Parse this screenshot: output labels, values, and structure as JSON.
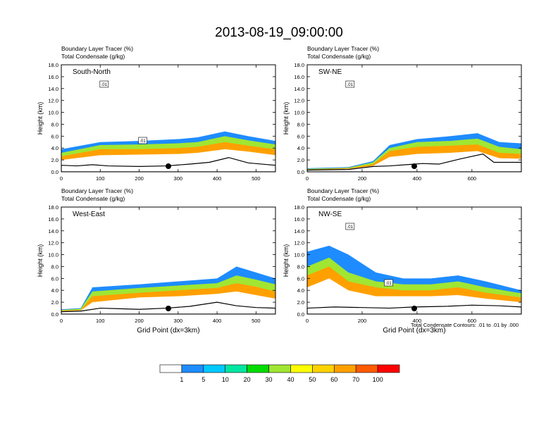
{
  "title": "2013-08-19_09:00:00",
  "footer_note": "Total Condensate Contours: .01 to .01 by .000",
  "chart_data": [
    {
      "type": "heatmap",
      "panel_label": "South-North",
      "subtitle_1": "Boundary Layer Tracer",
      "subtitle_1_units": "(%)",
      "subtitle_2": "Total Condensate",
      "subtitle_2_units": "(g/kg)",
      "ylabel": "Height (km)",
      "xlabel": "",
      "xlim": [
        0,
        550
      ],
      "ylim": [
        0,
        18
      ],
      "xticks": [
        "0",
        "100",
        "200",
        "300",
        "400",
        "500"
      ],
      "xtick_values": [
        0,
        100,
        200,
        300,
        400,
        500
      ],
      "yticks": [
        "0.0",
        "2.0",
        "4.0",
        "6.0",
        "8.0",
        "10.0",
        "12.0",
        "14.0",
        "16.0",
        "18.0"
      ],
      "ytick_values": [
        0,
        2,
        4,
        6,
        8,
        10,
        12,
        14,
        16,
        18
      ],
      "contour_labels": [
        ".01",
        ".01"
      ],
      "marker_x": 275,
      "terrain_km": [
        [
          0,
          1.1
        ],
        [
          40,
          1.0
        ],
        [
          80,
          1.2
        ],
        [
          120,
          1.0
        ],
        [
          200,
          0.9
        ],
        [
          270,
          1.0
        ],
        [
          330,
          1.3
        ],
        [
          380,
          1.6
        ],
        [
          430,
          2.4
        ],
        [
          480,
          1.5
        ],
        [
          550,
          1.1
        ]
      ],
      "tracer_layers": [
        {
          "level": 1,
          "top_km": [
            [
              0,
              3.8
            ],
            [
              100,
              5.0
            ],
            [
              200,
              5.2
            ],
            [
              300,
              5.5
            ],
            [
              350,
              5.8
            ],
            [
              420,
              6.8
            ],
            [
              480,
              6.0
            ],
            [
              550,
              5.2
            ]
          ]
        },
        {
          "level": 30,
          "top_km": [
            [
              0,
              3.2
            ],
            [
              100,
              4.5
            ],
            [
              200,
              4.6
            ],
            [
              300,
              4.8
            ],
            [
              350,
              5.0
            ],
            [
              420,
              6.0
            ],
            [
              480,
              5.3
            ],
            [
              550,
              4.6
            ]
          ]
        },
        {
          "level": 60,
          "top_km": [
            [
              0,
              2.6
            ],
            [
              100,
              3.8
            ],
            [
              200,
              3.8
            ],
            [
              300,
              4.0
            ],
            [
              350,
              4.2
            ],
            [
              420,
              5.0
            ],
            [
              480,
              4.4
            ],
            [
              550,
              3.8
            ]
          ]
        },
        {
          "level": 80,
          "top_km": [
            [
              0,
              2.0
            ],
            [
              100,
              2.8
            ],
            [
              200,
              2.9
            ],
            [
              300,
              3.0
            ],
            [
              350,
              3.2
            ],
            [
              420,
              3.8
            ],
            [
              480,
              3.4
            ],
            [
              550,
              2.8
            ]
          ]
        }
      ]
    },
    {
      "type": "heatmap",
      "panel_label": "SW-NE",
      "subtitle_1": "Boundary Layer Tracer",
      "subtitle_1_units": "(%)",
      "subtitle_2": "Total Condensate",
      "subtitle_2_units": "(g/kg)",
      "ylabel": "Height (km)",
      "xlabel": "",
      "xlim": [
        0,
        780
      ],
      "ylim": [
        0,
        18
      ],
      "xticks": [
        "0",
        "200",
        "400",
        "600"
      ],
      "xtick_values": [
        0,
        200,
        400,
        600
      ],
      "yticks": [
        "0.0",
        "2.0",
        "4.0",
        "6.0",
        "8.0",
        "10.0",
        "12.0",
        "14.0",
        "16.0",
        "18.0"
      ],
      "ytick_values": [
        0,
        2,
        4,
        6,
        8,
        10,
        12,
        14,
        16,
        18
      ],
      "contour_labels": [
        ".01"
      ],
      "marker_x": 390,
      "terrain_km": [
        [
          0,
          0.3
        ],
        [
          150,
          0.4
        ],
        [
          240,
          0.9
        ],
        [
          300,
          1.0
        ],
        [
          360,
          1.2
        ],
        [
          420,
          1.4
        ],
        [
          480,
          1.3
        ],
        [
          560,
          2.2
        ],
        [
          640,
          3.0
        ],
        [
          680,
          1.6
        ],
        [
          780,
          1.6
        ]
      ],
      "tracer_layers": [
        {
          "level": 1,
          "top_km": [
            [
              0,
              0.6
            ],
            [
              150,
              0.8
            ],
            [
              240,
              1.8
            ],
            [
              300,
              4.5
            ],
            [
              400,
              5.5
            ],
            [
              520,
              6.0
            ],
            [
              620,
              6.5
            ],
            [
              700,
              5.0
            ],
            [
              780,
              4.8
            ]
          ]
        },
        {
          "level": 30,
          "top_km": [
            [
              0,
              0.5
            ],
            [
              150,
              0.7
            ],
            [
              240,
              1.6
            ],
            [
              300,
              4.0
            ],
            [
              400,
              5.0
            ],
            [
              520,
              5.2
            ],
            [
              620,
              5.6
            ],
            [
              700,
              4.2
            ],
            [
              780,
              3.8
            ]
          ]
        },
        {
          "level": 60,
          "top_km": [
            [
              0,
              0.4
            ],
            [
              150,
              0.6
            ],
            [
              240,
              1.3
            ],
            [
              300,
              3.5
            ],
            [
              400,
              4.2
            ],
            [
              520,
              4.4
            ],
            [
              620,
              4.6
            ],
            [
              700,
              3.2
            ],
            [
              780,
              3.0
            ]
          ]
        },
        {
          "level": 80,
          "top_km": [
            [
              0,
              0.3
            ],
            [
              150,
              0.5
            ],
            [
              240,
              1.0
            ],
            [
              300,
              2.5
            ],
            [
              400,
              3.0
            ],
            [
              520,
              3.2
            ],
            [
              620,
              3.5
            ],
            [
              700,
              2.3
            ],
            [
              780,
              2.2
            ]
          ]
        }
      ]
    },
    {
      "type": "heatmap",
      "panel_label": "West-East",
      "subtitle_1": "Boundary Layer Tracer",
      "subtitle_1_units": "(%)",
      "subtitle_2": "Total Condensate",
      "subtitle_2_units": "(g/kg)",
      "ylabel": "Height (km)",
      "xlabel": "Grid Point (dx=3km)",
      "xlim": [
        0,
        550
      ],
      "ylim": [
        0,
        18
      ],
      "xticks": [
        "0",
        "100",
        "200",
        "300",
        "400",
        "500"
      ],
      "xtick_values": [
        0,
        100,
        200,
        300,
        400,
        500
      ],
      "yticks": [
        "0.0",
        "2.0",
        "4.0",
        "6.0",
        "8.0",
        "10.0",
        "12.0",
        "14.0",
        "16.0",
        "18.0"
      ],
      "ytick_values": [
        0,
        2,
        4,
        6,
        8,
        10,
        12,
        14,
        16,
        18
      ],
      "contour_labels": [],
      "marker_x": 275,
      "terrain_km": [
        [
          0,
          0.4
        ],
        [
          50,
          0.5
        ],
        [
          100,
          1.0
        ],
        [
          150,
          0.9
        ],
        [
          200,
          0.8
        ],
        [
          270,
          1.0
        ],
        [
          330,
          1.3
        ],
        [
          400,
          2.0
        ],
        [
          450,
          1.4
        ],
        [
          500,
          1.1
        ],
        [
          550,
          1.0
        ]
      ],
      "tracer_layers": [
        {
          "level": 1,
          "top_km": [
            [
              0,
              0.8
            ],
            [
              50,
              1.0
            ],
            [
              80,
              4.5
            ],
            [
              200,
              5.0
            ],
            [
              300,
              5.5
            ],
            [
              400,
              6.0
            ],
            [
              450,
              8.0
            ],
            [
              500,
              7.0
            ],
            [
              550,
              6.0
            ]
          ]
        },
        {
          "level": 30,
          "top_km": [
            [
              0,
              0.7
            ],
            [
              50,
              0.9
            ],
            [
              80,
              3.8
            ],
            [
              200,
              4.4
            ],
            [
              300,
              4.8
            ],
            [
              400,
              5.2
            ],
            [
              450,
              6.5
            ],
            [
              500,
              5.8
            ],
            [
              550,
              5.0
            ]
          ]
        },
        {
          "level": 60,
          "top_km": [
            [
              0,
              0.6
            ],
            [
              50,
              0.7
            ],
            [
              80,
              3.0
            ],
            [
              200,
              3.6
            ],
            [
              300,
              4.0
            ],
            [
              400,
              4.4
            ],
            [
              450,
              5.2
            ],
            [
              500,
              4.6
            ],
            [
              550,
              3.8
            ]
          ]
        },
        {
          "level": 80,
          "top_km": [
            [
              0,
              0.5
            ],
            [
              50,
              0.6
            ],
            [
              80,
              2.0
            ],
            [
              200,
              2.8
            ],
            [
              300,
              3.0
            ],
            [
              400,
              3.4
            ],
            [
              450,
              3.8
            ],
            [
              500,
              3.2
            ],
            [
              550,
              2.6
            ]
          ]
        }
      ]
    },
    {
      "type": "heatmap",
      "panel_label": "NW-SE",
      "subtitle_1": "Boundary Layer Tracer",
      "subtitle_1_units": "(%)",
      "subtitle_2": "Total Condensate",
      "subtitle_2_units": "(g/kg)",
      "ylabel": "Height (km)",
      "xlabel": "Grid Point (dx=3km)",
      "xlim": [
        0,
        780
      ],
      "ylim": [
        0,
        18
      ],
      "xticks": [
        "0",
        "200",
        "400",
        "600"
      ],
      "xtick_values": [
        0,
        200,
        400,
        600
      ],
      "yticks": [
        "0.0",
        "2.0",
        "4.0",
        "6.0",
        "8.0",
        "10.0",
        "12.0",
        "14.0",
        "16.0",
        "18.0"
      ],
      "ytick_values": [
        0,
        2,
        4,
        6,
        8,
        10,
        12,
        14,
        16,
        18
      ],
      "contour_labels": [
        ".01",
        ".01"
      ],
      "marker_x": 390,
      "terrain_km": [
        [
          0,
          1.0
        ],
        [
          100,
          1.2
        ],
        [
          200,
          1.1
        ],
        [
          300,
          1.0
        ],
        [
          390,
          1.2
        ],
        [
          500,
          1.3
        ],
        [
          600,
          1.5
        ],
        [
          700,
          1.4
        ],
        [
          780,
          1.2
        ]
      ],
      "tracer_layers": [
        {
          "level": 1,
          "top_km": [
            [
              0,
              10.5
            ],
            [
              80,
              11.5
            ],
            [
              150,
              10.0
            ],
            [
              250,
              7.0
            ],
            [
              350,
              6.0
            ],
            [
              450,
              6.0
            ],
            [
              550,
              6.5
            ],
            [
              650,
              5.5
            ],
            [
              780,
              4.0
            ]
          ]
        },
        {
          "level": 30,
          "top_km": [
            [
              0,
              8.0
            ],
            [
              80,
              9.5
            ],
            [
              150,
              7.0
            ],
            [
              250,
              5.5
            ],
            [
              350,
              5.0
            ],
            [
              450,
              5.0
            ],
            [
              550,
              5.5
            ],
            [
              650,
              4.5
            ],
            [
              780,
              3.5
            ]
          ]
        },
        {
          "level": 60,
          "top_km": [
            [
              0,
              6.5
            ],
            [
              80,
              8.0
            ],
            [
              150,
              5.5
            ],
            [
              250,
              4.5
            ],
            [
              350,
              4.0
            ],
            [
              450,
              4.0
            ],
            [
              550,
              4.5
            ],
            [
              650,
              3.6
            ],
            [
              780,
              2.8
            ]
          ]
        },
        {
          "level": 80,
          "top_km": [
            [
              0,
              4.5
            ],
            [
              80,
              6.0
            ],
            [
              150,
              4.0
            ],
            [
              250,
              3.0
            ],
            [
              350,
              3.0
            ],
            [
              450,
              3.0
            ],
            [
              550,
              3.2
            ],
            [
              650,
              2.6
            ],
            [
              780,
              2.0
            ]
          ]
        }
      ]
    }
  ],
  "colorbar": {
    "labels": [
      "1",
      "5",
      "10",
      "20",
      "30",
      "40",
      "50",
      "60",
      "70",
      "100"
    ],
    "colors": [
      "#ffffff",
      "#1e8cff",
      "#00c8ff",
      "#00e6a0",
      "#00dc00",
      "#a0e632",
      "#ffff00",
      "#ffd200",
      "#ffa000",
      "#ff5a00",
      "#ff0000"
    ]
  }
}
